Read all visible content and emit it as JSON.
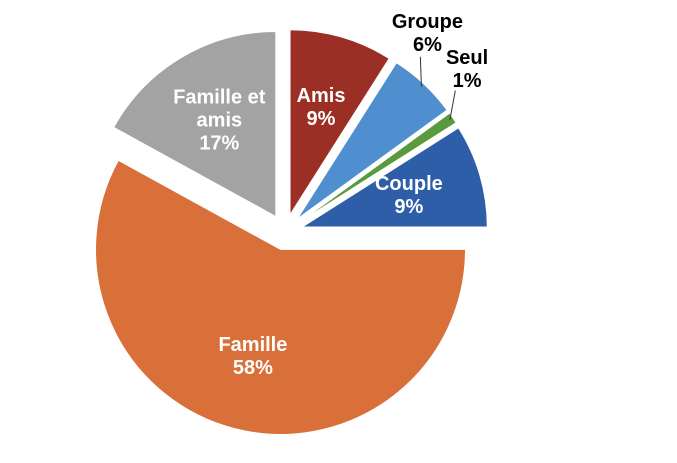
{
  "chart_data": {
    "type": "pie",
    "categories": [
      "Amis",
      "Groupe",
      "Seul",
      "Couple",
      "Famille",
      "Famille et amis"
    ],
    "values": [
      9,
      6,
      1,
      9,
      58,
      17
    ],
    "value_labels": [
      "9%",
      "6%",
      "1%",
      "9%",
      "58%",
      "17%"
    ],
    "colors": [
      "#9b2f25",
      "#4f8fd0",
      "#5a9a3e",
      "#2f5ea8",
      "#d9703a",
      "#a3a3a3"
    ]
  }
}
